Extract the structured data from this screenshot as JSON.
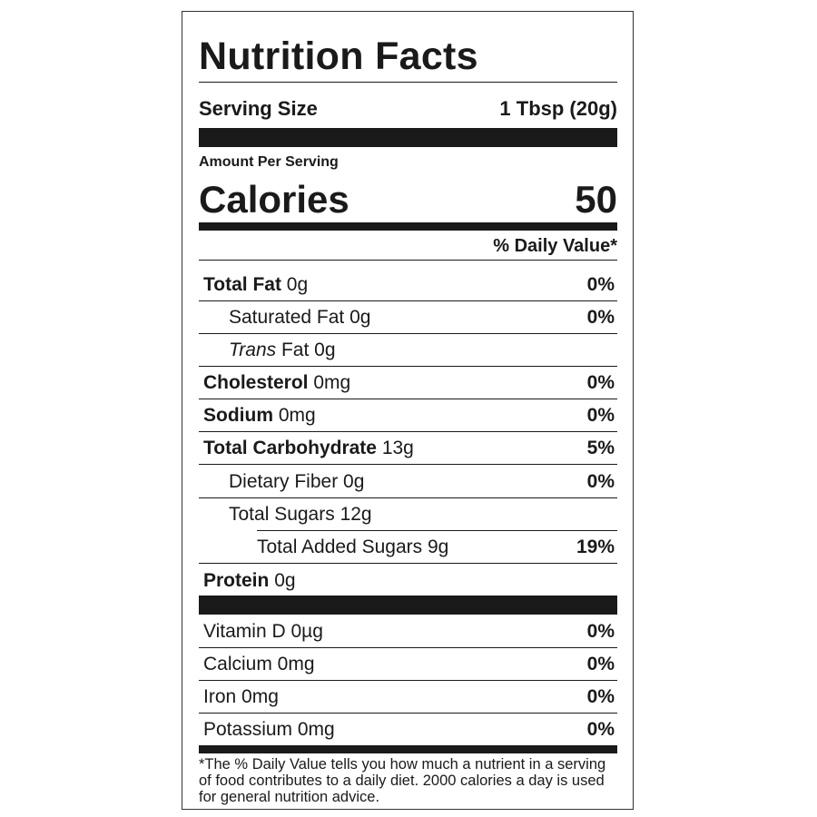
{
  "title": "Nutrition Facts",
  "serving": {
    "label": "Serving Size",
    "value": "1 Tbsp (20g)"
  },
  "amount_per_serving": "Amount Per Serving",
  "calories": {
    "label": "Calories",
    "value": "50"
  },
  "daily_value_header": "% Daily Value*",
  "nutrients": {
    "total_fat": {
      "label": "Total Fat",
      "amount": "0g",
      "dv": "0%"
    },
    "saturated_fat": {
      "label": "Saturated Fat 0g",
      "dv": "0%"
    },
    "trans_fat": {
      "label_italic": "Trans",
      "label_rest": "Fat 0g"
    },
    "cholesterol": {
      "label": "Cholesterol",
      "amount": "0mg",
      "dv": "0%"
    },
    "sodium": {
      "label": "Sodium",
      "amount": "0mg",
      "dv": "0%"
    },
    "total_carbohydrate": {
      "label": "Total Carbohydrate",
      "amount": "13g",
      "dv": "5%"
    },
    "dietary_fiber": {
      "label": "Dietary Fiber 0g",
      "dv": "0%"
    },
    "total_sugars": {
      "label": "Total Sugars 12g"
    },
    "added_sugars": {
      "label": "Total Added Sugars 9g",
      "dv": "19%"
    },
    "protein": {
      "label": "Protein",
      "amount": "0g"
    }
  },
  "vitamins": {
    "vitamin_d": {
      "label": "Vitamin D 0µg",
      "dv": "0%"
    },
    "calcium": {
      "label": "Calcium 0mg",
      "dv": "0%"
    },
    "iron": {
      "label": "Iron 0mg",
      "dv": "0%"
    },
    "potassium": {
      "label": "Potassium 0mg",
      "dv": "0%"
    }
  },
  "footnote": "*The % Daily Value tells you how much a nutrient in a serving of food contributes to a daily diet. 2000 calories a day is used for general nutrition advice."
}
